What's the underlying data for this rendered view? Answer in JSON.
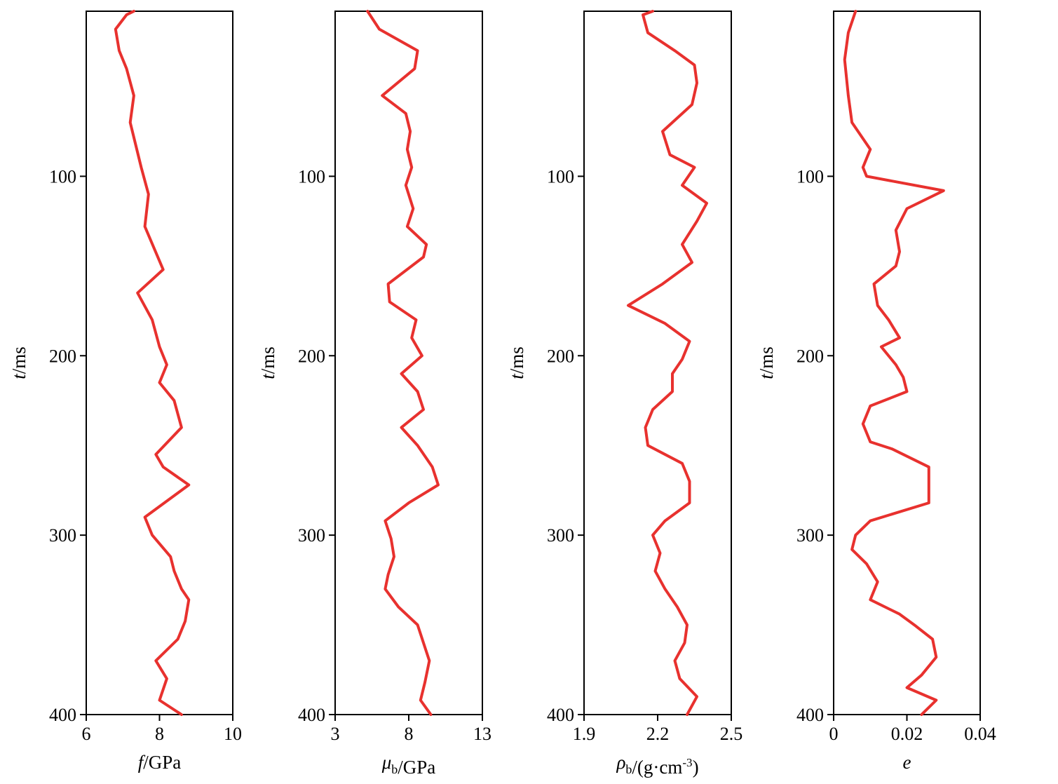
{
  "chart_data": [
    {
      "type": "line",
      "ylabel": {
        "var": "t",
        "unit": "/ms"
      },
      "xlabel": {
        "var": "f",
        "sub": "",
        "unit": "/GPa"
      },
      "xlim": [
        6,
        10
      ],
      "xticks": [
        "6",
        "8",
        "10"
      ],
      "ylim": [
        0,
        400
      ],
      "yticks": [
        "100",
        "200",
        "300",
        "400"
      ],
      "y_inverted": true,
      "line_color": "#e8312e",
      "series": [
        {
          "points": [
            [
              7.3,
              0
            ],
            [
              7.1,
              10
            ],
            [
              6.8,
              18
            ],
            [
              6.9,
              30
            ],
            [
              7.1,
              40
            ],
            [
              7.3,
              55
            ],
            [
              7.2,
              70
            ],
            [
              7.5,
              95
            ],
            [
              7.7,
              110
            ],
            [
              7.6,
              128
            ],
            [
              8.1,
              152
            ],
            [
              7.4,
              165
            ],
            [
              7.8,
              180
            ],
            [
              8.0,
              195
            ],
            [
              8.2,
              205
            ],
            [
              8.0,
              215
            ],
            [
              8.4,
              225
            ],
            [
              8.6,
              240
            ],
            [
              7.9,
              255
            ],
            [
              8.1,
              262
            ],
            [
              8.8,
              272
            ],
            [
              7.6,
              290
            ],
            [
              7.8,
              300
            ],
            [
              8.3,
              312
            ],
            [
              8.4,
              320
            ],
            [
              8.6,
              330
            ],
            [
              8.8,
              336
            ],
            [
              8.7,
              348
            ],
            [
              8.5,
              358
            ],
            [
              7.9,
              370
            ],
            [
              8.2,
              380
            ],
            [
              8.0,
              392
            ],
            [
              8.6,
              400
            ]
          ]
        }
      ]
    },
    {
      "type": "line",
      "ylabel": {
        "var": "t",
        "unit": "/ms"
      },
      "xlabel": {
        "var": "μ",
        "sub": "b",
        "unit": "/GPa"
      },
      "xlim": [
        3,
        13
      ],
      "xticks": [
        "3",
        "8",
        "13"
      ],
      "ylim": [
        0,
        400
      ],
      "yticks": [
        "100",
        "200",
        "300",
        "400"
      ],
      "y_inverted": true,
      "line_color": "#e8312e",
      "series": [
        {
          "points": [
            [
              5.2,
              0
            ],
            [
              6.0,
              18
            ],
            [
              8.6,
              30
            ],
            [
              8.4,
              40
            ],
            [
              6.2,
              55
            ],
            [
              7.8,
              65
            ],
            [
              8.1,
              75
            ],
            [
              7.9,
              85
            ],
            [
              8.2,
              95
            ],
            [
              7.8,
              105
            ],
            [
              8.3,
              118
            ],
            [
              7.9,
              128
            ],
            [
              9.2,
              138
            ],
            [
              9.0,
              145
            ],
            [
              6.6,
              160
            ],
            [
              6.7,
              170
            ],
            [
              8.5,
              180
            ],
            [
              8.2,
              190
            ],
            [
              8.9,
              200
            ],
            [
              7.5,
              210
            ],
            [
              8.6,
              220
            ],
            [
              9.0,
              230
            ],
            [
              7.5,
              240
            ],
            [
              8.6,
              250
            ],
            [
              9.6,
              262
            ],
            [
              10.0,
              272
            ],
            [
              8.0,
              282
            ],
            [
              6.4,
              292
            ],
            [
              6.8,
              302
            ],
            [
              7.0,
              312
            ],
            [
              6.6,
              322
            ],
            [
              6.4,
              330
            ],
            [
              7.3,
              340
            ],
            [
              8.6,
              350
            ],
            [
              9.0,
              360
            ],
            [
              9.4,
              370
            ],
            [
              9.1,
              382
            ],
            [
              8.8,
              392
            ],
            [
              9.5,
              400
            ]
          ]
        }
      ]
    },
    {
      "type": "line",
      "ylabel": {
        "var": "t",
        "unit": "/ms"
      },
      "xlabel": {
        "var": "ρ",
        "sub": "b",
        "unit": "/(g·cm<sup>-3</sup>)"
      },
      "xlim": [
        1.9,
        2.5
      ],
      "xticks": [
        "1.9",
        "2.2",
        "2.5"
      ],
      "ylim": [
        0,
        400
      ],
      "yticks": [
        "100",
        "200",
        "300",
        "400"
      ],
      "y_inverted": true,
      "line_color": "#e8312e",
      "series": [
        {
          "points": [
            [
              2.18,
              0
            ],
            [
              2.14,
              10
            ],
            [
              2.16,
              20
            ],
            [
              2.27,
              30
            ],
            [
              2.35,
              38
            ],
            [
              2.36,
              48
            ],
            [
              2.34,
              60
            ],
            [
              2.22,
              75
            ],
            [
              2.25,
              88
            ],
            [
              2.35,
              95
            ],
            [
              2.3,
              105
            ],
            [
              2.4,
              115
            ],
            [
              2.36,
              125
            ],
            [
              2.3,
              138
            ],
            [
              2.34,
              148
            ],
            [
              2.22,
              160
            ],
            [
              2.08,
              172
            ],
            [
              2.23,
              182
            ],
            [
              2.33,
              192
            ],
            [
              2.3,
              202
            ],
            [
              2.26,
              210
            ],
            [
              2.26,
              220
            ],
            [
              2.18,
              230
            ],
            [
              2.15,
              240
            ],
            [
              2.16,
              250
            ],
            [
              2.3,
              260
            ],
            [
              2.33,
              270
            ],
            [
              2.33,
              282
            ],
            [
              2.23,
              292
            ],
            [
              2.18,
              300
            ],
            [
              2.21,
              310
            ],
            [
              2.19,
              320
            ],
            [
              2.23,
              330
            ],
            [
              2.28,
              340
            ],
            [
              2.32,
              350
            ],
            [
              2.31,
              360
            ],
            [
              2.27,
              370
            ],
            [
              2.29,
              380
            ],
            [
              2.36,
              390
            ],
            [
              2.32,
              400
            ]
          ]
        }
      ]
    },
    {
      "type": "line",
      "ylabel": {
        "var": "t",
        "unit": "/ms"
      },
      "xlabel": {
        "var": "e",
        "sub": "",
        "unit": ""
      },
      "xlim": [
        0,
        0.04
      ],
      "xticks": [
        "0",
        "0.02",
        "0.04"
      ],
      "ylim": [
        0,
        400
      ],
      "yticks": [
        "100",
        "200",
        "300",
        "400"
      ],
      "y_inverted": true,
      "line_color": "#e8312e",
      "series": [
        {
          "points": [
            [
              0.006,
              0
            ],
            [
              0.004,
              20
            ],
            [
              0.003,
              35
            ],
            [
              0.004,
              55
            ],
            [
              0.005,
              70
            ],
            [
              0.01,
              85
            ],
            [
              0.008,
              95
            ],
            [
              0.009,
              100
            ],
            [
              0.03,
              108
            ],
            [
              0.02,
              118
            ],
            [
              0.017,
              130
            ],
            [
              0.018,
              142
            ],
            [
              0.017,
              150
            ],
            [
              0.011,
              160
            ],
            [
              0.012,
              172
            ],
            [
              0.015,
              180
            ],
            [
              0.018,
              190
            ],
            [
              0.013,
              195
            ],
            [
              0.017,
              205
            ],
            [
              0.019,
              212
            ],
            [
              0.02,
              220
            ],
            [
              0.01,
              228
            ],
            [
              0.008,
              238
            ],
            [
              0.01,
              248
            ],
            [
              0.016,
              252
            ],
            [
              0.026,
              262
            ],
            [
              0.026,
              272
            ],
            [
              0.026,
              282
            ],
            [
              0.01,
              292
            ],
            [
              0.006,
              300
            ],
            [
              0.005,
              308
            ],
            [
              0.009,
              316
            ],
            [
              0.012,
              326
            ],
            [
              0.01,
              336
            ],
            [
              0.018,
              344
            ],
            [
              0.022,
              350
            ],
            [
              0.027,
              358
            ],
            [
              0.028,
              368
            ],
            [
              0.024,
              378
            ],
            [
              0.02,
              385
            ],
            [
              0.028,
              392
            ],
            [
              0.024,
              400
            ]
          ]
        }
      ]
    }
  ]
}
